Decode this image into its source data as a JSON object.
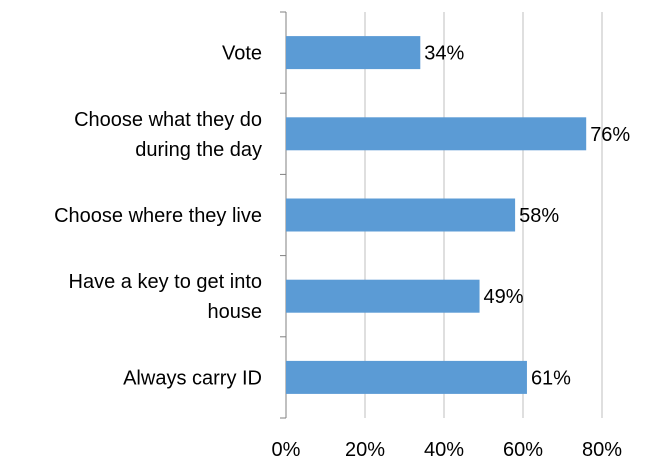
{
  "chart_data": {
    "type": "bar",
    "orientation": "horizontal",
    "title": "",
    "xlabel": "",
    "ylabel": "",
    "categories": [
      [
        "Vote"
      ],
      [
        "Choose what they do",
        "during the day"
      ],
      [
        "Choose where they live"
      ],
      [
        "Have a key to get into",
        "house"
      ],
      [
        "Always carry ID"
      ]
    ],
    "values": [
      34,
      76,
      58,
      49,
      61
    ],
    "value_labels": [
      "34%",
      "76%",
      "58%",
      "49%",
      "61%"
    ],
    "xlim": [
      0,
      80
    ],
    "xticks": [
      0,
      20,
      40,
      60,
      80
    ],
    "xtick_labels": [
      "0%",
      "20%",
      "40%",
      "60%",
      "80%"
    ],
    "grid": "vertical",
    "legend": "none",
    "colors": {
      "bar": "#5B9BD5",
      "grid": "#BFBFBF",
      "axis": "#808080",
      "text": "#000000"
    }
  }
}
